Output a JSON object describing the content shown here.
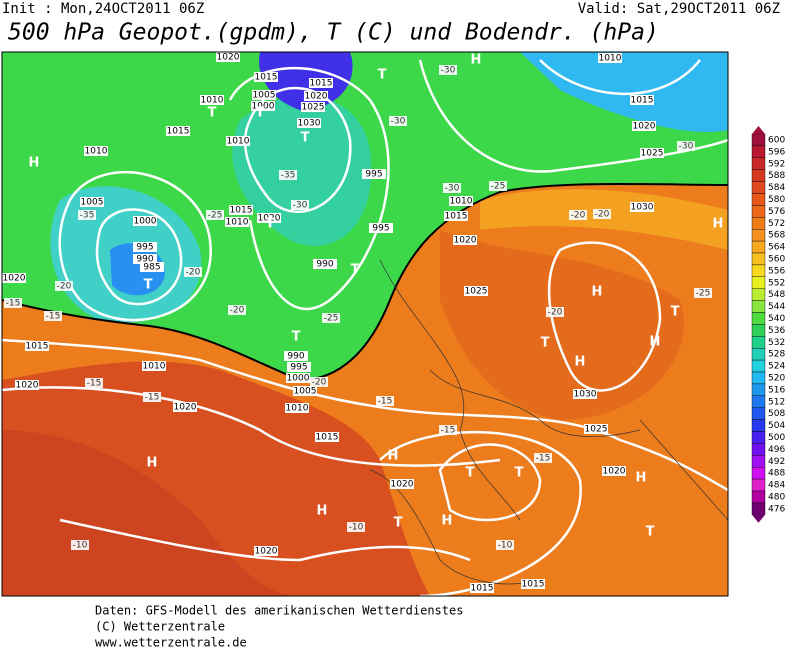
{
  "header": {
    "init": "Init : Mon,24OCT2011 06Z",
    "valid": "Valid: Sat,29OCT2011 06Z",
    "title": "500 hPa Geopot.(gpdm), T (C) und Bodendr. (hPa)"
  },
  "legend": {
    "labels": [
      600,
      596,
      592,
      588,
      584,
      580,
      576,
      572,
      568,
      564,
      560,
      556,
      552,
      548,
      544,
      540,
      536,
      532,
      528,
      524,
      520,
      516,
      512,
      508,
      504,
      500,
      496,
      492,
      488,
      484,
      480,
      476
    ],
    "colors": [
      "#a0103c",
      "#b81830",
      "#c82828",
      "#d43820",
      "#e04820",
      "#e85818",
      "#ec6818",
      "#f07c18",
      "#f49020",
      "#f8a820",
      "#f8c020",
      "#f8d820",
      "#e8f020",
      "#b8ec30",
      "#88e440",
      "#50dc40",
      "#30d058",
      "#20d088",
      "#20d0b8",
      "#20d0e0",
      "#20b8f0",
      "#2098f0",
      "#2078f0",
      "#2058f0",
      "#2838f0",
      "#4820f0",
      "#7010f0",
      "#a010f0",
      "#d010f0",
      "#e020c8",
      "#b000a0",
      "#700070"
    ]
  },
  "footer": [
    "Daten: GFS-Modell des amerikanischen Wetterdienstes",
    "(C) Wetterzentrale",
    "www.wetterzentrale.de"
  ],
  "isobar_labels": [
    "1020",
    "1015",
    "1015",
    "1010",
    "1005",
    "1000",
    "1020",
    "1025",
    "1030",
    "1015",
    "1010",
    "1010",
    "1005",
    "1000",
    "995",
    "990",
    "985",
    "1015",
    "1010",
    "1020",
    "995",
    "995",
    "990",
    "1015",
    "1010",
    "1020",
    "1030",
    "1020",
    "1015",
    "1010",
    "1020",
    "1020",
    "1025",
    "990",
    "995",
    "1000",
    "1005",
    "1010",
    "1015",
    "1030",
    "1025",
    "1020",
    "1020",
    "1020",
    "1015",
    "1015",
    "1010",
    "1015",
    "1020",
    "1025"
  ],
  "pressure_centers": [
    "H",
    "H",
    "H",
    "H",
    "H",
    "H",
    "H",
    "H",
    "H",
    "H",
    "T",
    "T",
    "T",
    "T",
    "T",
    "T",
    "T",
    "T",
    "T",
    "T",
    "T",
    "T",
    "T",
    "T",
    "H"
  ],
  "temp_labels": [
    "-35",
    "-25",
    "-20",
    "-15",
    "-20",
    "-15",
    "-10",
    "-10",
    "-15",
    "-15",
    "-20",
    "-30",
    "-25",
    "-20",
    "-20",
    "-20",
    "-25",
    "-15",
    "-15",
    "-15",
    "-10",
    "-30",
    "-30",
    "-30",
    "-35",
    "-30",
    "-25",
    "-20"
  ]
}
